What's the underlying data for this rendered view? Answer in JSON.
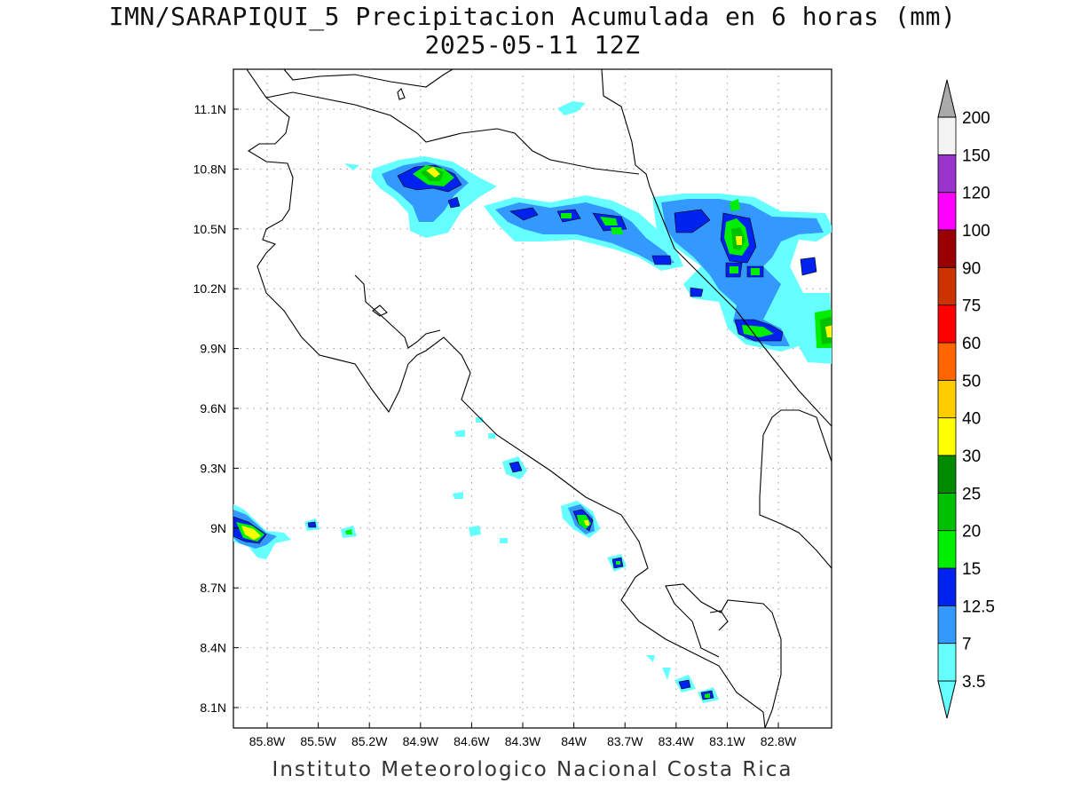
{
  "header": {
    "title": "IMN/SARAPIQUI_5 Precipitacion Acumulada en 6 horas (mm)",
    "subtitle": "2025-05-11 12Z"
  },
  "footer": {
    "credit": "Instituto Meteorologico Nacional Costa Rica"
  },
  "map": {
    "x_ticks": [
      "85.8W",
      "85.5W",
      "85.2W",
      "84.9W",
      "84.6W",
      "84.3W",
      "84W",
      "83.7W",
      "83.4W",
      "83.1W",
      "82.8W"
    ],
    "y_ticks": [
      "11.1N",
      "10.8N",
      "10.5N",
      "10.2N",
      "9.9N",
      "9.6N",
      "9.3N",
      "9N",
      "8.7N",
      "8.4N",
      "8.1N"
    ],
    "gridlines": true,
    "boundary_color": "#000000"
  },
  "colorbar": {
    "levels": [
      "3.5",
      "7",
      "12.5",
      "15",
      "20",
      "25",
      "30",
      "40",
      "50",
      "60",
      "75",
      "90",
      "100",
      "120",
      "150",
      "200"
    ],
    "colors": [
      "#66ffff",
      "#3399ff",
      "#0022ee",
      "#00ee00",
      "#00c000",
      "#008a00",
      "#ffff00",
      "#ffcc00",
      "#ff6600",
      "#ff0000",
      "#cc3300",
      "#990000",
      "#ff00ff",
      "#9933cc",
      "#f4f4f4",
      "#aaaaaa"
    ]
  },
  "rain_palette": {
    "l1": "#66ffff",
    "l2": "#3399ff",
    "l3": "#0022ee",
    "l4": "#00ee00",
    "l5": "#00c000",
    "l6": "#ffff00"
  }
}
